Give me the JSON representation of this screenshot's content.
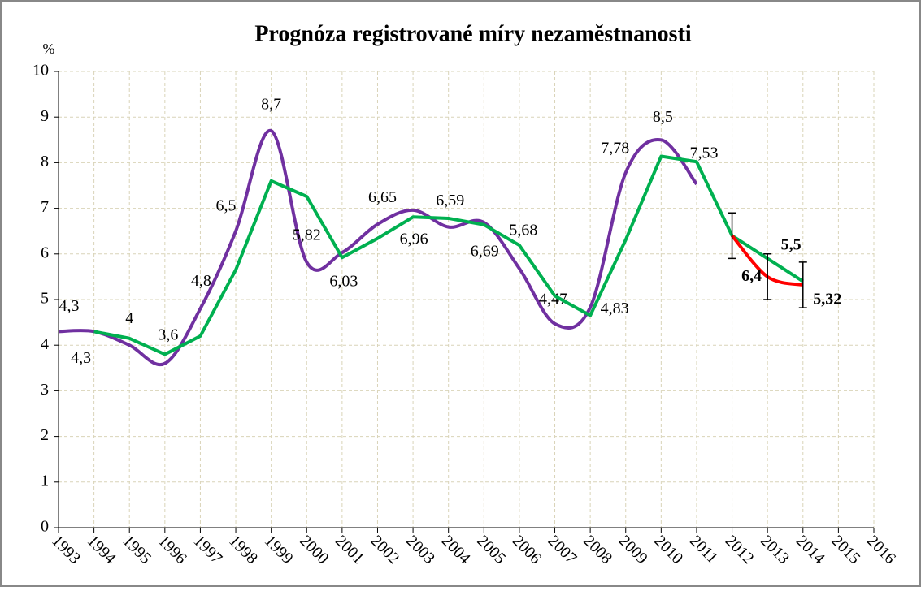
{
  "chart_data": {
    "type": "line",
    "title": "Prognóza registrované míry nezaměstnanosti",
    "y_label": "%",
    "categories": [
      "1993",
      "1994",
      "1995",
      "1996",
      "1997",
      "1998",
      "1999",
      "2000",
      "2001",
      "2002",
      "2003",
      "2004",
      "2005",
      "2006",
      "2007",
      "2008",
      "2009",
      "2010",
      "2011",
      "2012",
      "2013",
      "2014",
      "2015",
      "2016"
    ],
    "ylim": [
      0,
      10
    ],
    "yticks": [
      0,
      1,
      2,
      3,
      4,
      5,
      6,
      7,
      8,
      9,
      10
    ],
    "grid": true,
    "series": [
      {
        "color": "#7030a0",
        "smooth": true,
        "values": [
          4.3,
          4.3,
          4.0,
          3.6,
          4.8,
          6.5,
          8.7,
          5.82,
          6.03,
          6.65,
          6.96,
          6.59,
          6.69,
          5.68,
          4.47,
          4.83,
          7.78,
          8.5,
          7.53,
          null,
          null,
          null,
          null,
          null
        ],
        "value_labels": [
          "4,3",
          "4,3",
          "4",
          "3,6",
          "4,8",
          "6,5",
          "8,7",
          "5,82",
          "6,03",
          "6,65",
          "6,96",
          "6,59",
          "6,69",
          "5,68",
          "4,47",
          "4,83",
          "7,78",
          "8,5",
          "7,53",
          null,
          null,
          null,
          null,
          null
        ]
      },
      {
        "color": "#00b050",
        "smooth": false,
        "values": [
          null,
          4.3,
          4.15,
          3.8,
          4.2,
          5.65,
          7.6,
          7.26,
          5.92,
          6.34,
          6.81,
          6.78,
          6.64,
          6.19,
          5.08,
          4.65,
          6.31,
          8.14,
          8.02,
          6.4,
          5.9,
          5.4,
          null,
          null
        ]
      },
      {
        "color": "#ff0000",
        "smooth": true,
        "bold_labels": true,
        "values": [
          null,
          null,
          null,
          null,
          null,
          null,
          null,
          null,
          null,
          null,
          null,
          null,
          null,
          null,
          null,
          null,
          null,
          null,
          null,
          6.4,
          5.5,
          5.32,
          null,
          null
        ],
        "value_labels": [
          null,
          null,
          null,
          null,
          null,
          null,
          null,
          null,
          null,
          null,
          null,
          null,
          null,
          null,
          null,
          null,
          null,
          null,
          null,
          "6,4",
          "5,5",
          "5,32",
          null,
          null
        ],
        "errors": [
          null,
          null,
          null,
          null,
          null,
          null,
          null,
          null,
          null,
          null,
          null,
          null,
          null,
          null,
          null,
          null,
          null,
          null,
          null,
          0.5,
          0.5,
          0.5,
          null,
          null
        ]
      }
    ]
  }
}
